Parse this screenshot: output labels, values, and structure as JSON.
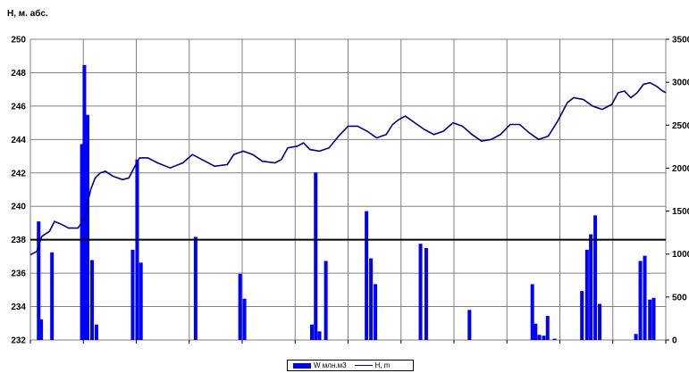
{
  "chart_data": {
    "type": "bar+line",
    "ylabel": "H, м. абс.",
    "y_left": {
      "min": 232,
      "max": 250,
      "ticks": [
        "232",
        "234",
        "236",
        "238",
        "240",
        "242",
        "244",
        "246",
        "248",
        "250"
      ]
    },
    "y_right": {
      "min": 0,
      "max": 3500,
      "ticks": [
        "0",
        "500",
        "1000",
        "1500",
        "2000",
        "2500",
        "3000",
        "3500"
      ]
    },
    "reference_line": 238,
    "grid": true,
    "legend_position": "bottom-center",
    "colors": {
      "bars": "#0000ff",
      "line": "#000080",
      "reference": "#000000",
      "grid": "#808080"
    },
    "series": [
      {
        "name": "W млн.м3",
        "axis": "right",
        "points": [
          [
            0.013,
            1380
          ],
          [
            0.017,
            240
          ],
          [
            0.034,
            1020
          ],
          [
            0.081,
            2280
          ],
          [
            0.085,
            3200
          ],
          [
            0.09,
            2620
          ],
          [
            0.097,
            930
          ],
          [
            0.104,
            180
          ],
          [
            0.161,
            1050
          ],
          [
            0.168,
            2100
          ],
          [
            0.174,
            900
          ],
          [
            0.26,
            1200
          ],
          [
            0.33,
            770
          ],
          [
            0.337,
            480
          ],
          [
            0.443,
            180
          ],
          [
            0.449,
            1950
          ],
          [
            0.455,
            100
          ],
          [
            0.465,
            920
          ],
          [
            0.529,
            1500
          ],
          [
            0.536,
            950
          ],
          [
            0.543,
            650
          ],
          [
            0.614,
            1120
          ],
          [
            0.623,
            1070
          ],
          [
            0.691,
            350
          ],
          [
            0.79,
            650
          ],
          [
            0.795,
            190
          ],
          [
            0.801,
            60
          ],
          [
            0.808,
            50
          ],
          [
            0.814,
            280
          ],
          [
            0.825,
            15
          ],
          [
            0.868,
            570
          ],
          [
            0.876,
            1050
          ],
          [
            0.882,
            1230
          ],
          [
            0.889,
            1450
          ],
          [
            0.896,
            420
          ],
          [
            0.953,
            70
          ],
          [
            0.96,
            920
          ],
          [
            0.967,
            980
          ],
          [
            0.975,
            470
          ],
          [
            0.981,
            490
          ]
        ]
      },
      {
        "name": "H, m",
        "axis": "left",
        "points": [
          [
            0.0,
            237.1
          ],
          [
            0.01,
            237.3
          ],
          [
            0.018,
            238.2
          ],
          [
            0.03,
            238.5
          ],
          [
            0.038,
            239.1
          ],
          [
            0.05,
            238.9
          ],
          [
            0.06,
            238.7
          ],
          [
            0.075,
            238.7
          ],
          [
            0.08,
            239.0
          ],
          [
            0.085,
            239.2
          ],
          [
            0.09,
            240.2
          ],
          [
            0.095,
            241.0
          ],
          [
            0.102,
            241.7
          ],
          [
            0.11,
            242.0
          ],
          [
            0.118,
            242.1
          ],
          [
            0.13,
            241.8
          ],
          [
            0.145,
            241.6
          ],
          [
            0.155,
            241.7
          ],
          [
            0.163,
            242.3
          ],
          [
            0.172,
            242.9
          ],
          [
            0.185,
            242.9
          ],
          [
            0.2,
            242.6
          ],
          [
            0.22,
            242.3
          ],
          [
            0.24,
            242.6
          ],
          [
            0.255,
            243.1
          ],
          [
            0.27,
            242.8
          ],
          [
            0.29,
            242.4
          ],
          [
            0.31,
            242.5
          ],
          [
            0.32,
            243.1
          ],
          [
            0.335,
            243.3
          ],
          [
            0.35,
            243.1
          ],
          [
            0.365,
            242.7
          ],
          [
            0.385,
            242.6
          ],
          [
            0.395,
            242.8
          ],
          [
            0.405,
            243.5
          ],
          [
            0.42,
            243.6
          ],
          [
            0.43,
            243.8
          ],
          [
            0.44,
            243.4
          ],
          [
            0.455,
            243.3
          ],
          [
            0.47,
            243.5
          ],
          [
            0.485,
            244.2
          ],
          [
            0.5,
            244.8
          ],
          [
            0.515,
            244.8
          ],
          [
            0.53,
            244.5
          ],
          [
            0.545,
            244.1
          ],
          [
            0.56,
            244.3
          ],
          [
            0.57,
            244.9
          ],
          [
            0.58,
            245.2
          ],
          [
            0.59,
            245.4
          ],
          [
            0.605,
            245.0
          ],
          [
            0.62,
            244.6
          ],
          [
            0.635,
            244.3
          ],
          [
            0.65,
            244.5
          ],
          [
            0.665,
            245.0
          ],
          [
            0.68,
            244.8
          ],
          [
            0.695,
            244.3
          ],
          [
            0.71,
            243.9
          ],
          [
            0.725,
            244.0
          ],
          [
            0.74,
            244.3
          ],
          [
            0.755,
            244.9
          ],
          [
            0.77,
            244.9
          ],
          [
            0.785,
            244.4
          ],
          [
            0.8,
            244.0
          ],
          [
            0.815,
            244.2
          ],
          [
            0.83,
            245.1
          ],
          [
            0.845,
            246.2
          ],
          [
            0.855,
            246.5
          ],
          [
            0.87,
            246.4
          ],
          [
            0.885,
            246.0
          ],
          [
            0.9,
            245.8
          ],
          [
            0.915,
            246.1
          ],
          [
            0.925,
            246.8
          ],
          [
            0.935,
            246.9
          ],
          [
            0.945,
            246.5
          ],
          [
            0.955,
            246.8
          ],
          [
            0.965,
            247.3
          ],
          [
            0.975,
            247.4
          ],
          [
            0.985,
            247.2
          ],
          [
            0.995,
            246.9
          ],
          [
            1.0,
            246.8
          ]
        ]
      }
    ]
  }
}
